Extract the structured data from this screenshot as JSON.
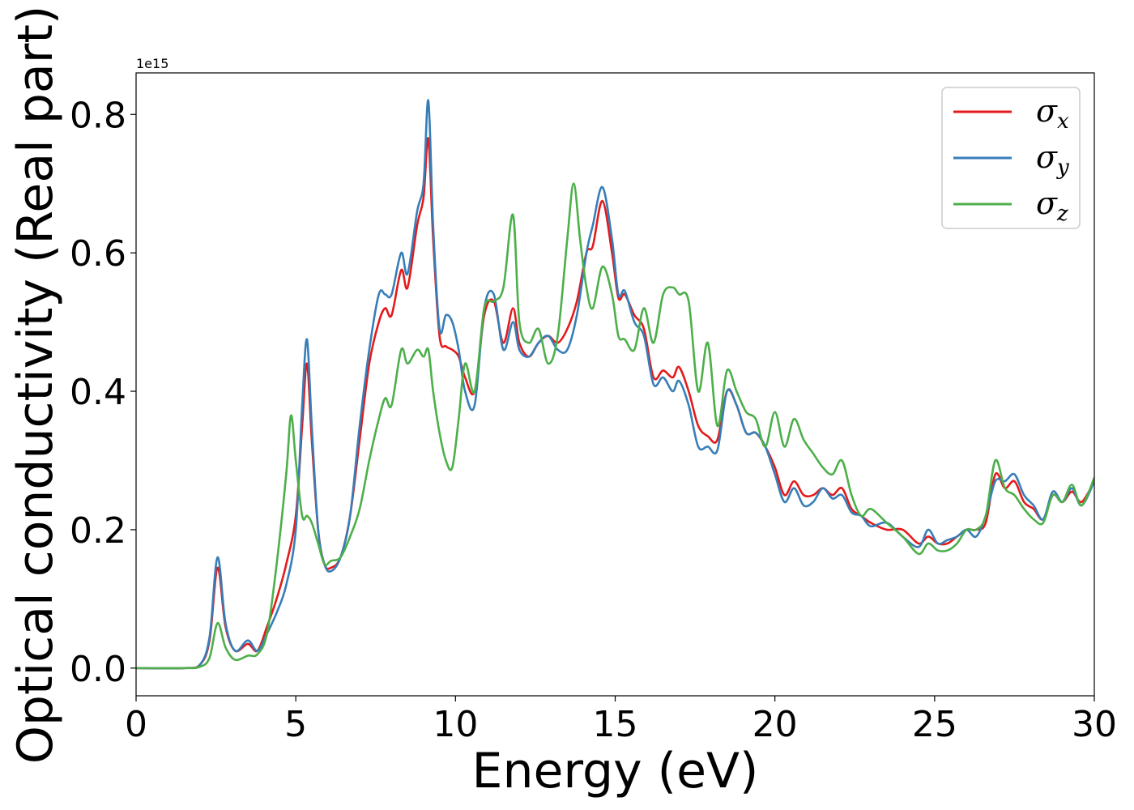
{
  "chart_data": {
    "type": "line",
    "xlabel": "Energy (eV)",
    "ylabel": "Optical conductivity (Real part)",
    "y_offset_label": "1e15",
    "xlim": [
      0,
      30
    ],
    "ylim": [
      -0.04,
      0.86
    ],
    "xticks": [
      0,
      5,
      10,
      15,
      20,
      25,
      30
    ],
    "xtick_labels": [
      "0",
      "5",
      "10",
      "15",
      "20",
      "25",
      "30"
    ],
    "yticks": [
      0.0,
      0.2,
      0.4,
      0.6,
      0.8
    ],
    "ytick_labels": [
      "0.0",
      "0.2",
      "0.4",
      "0.6",
      "0.8"
    ],
    "grid": false,
    "legend_position": "top-right",
    "series": [
      {
        "name": "σx",
        "symbol": "σ",
        "subscript": "x",
        "color": "#e41a1c",
        "x": [
          0,
          1.5,
          2.0,
          2.3,
          2.55,
          2.8,
          3.1,
          3.5,
          3.8,
          4.1,
          4.4,
          4.7,
          5.0,
          5.2,
          5.35,
          5.5,
          5.7,
          5.9,
          6.1,
          6.4,
          6.7,
          7.0,
          7.3,
          7.6,
          7.8,
          8.0,
          8.3,
          8.5,
          8.8,
          9.0,
          9.15,
          9.3,
          9.5,
          9.7,
          9.9,
          10.1,
          10.3,
          10.6,
          10.9,
          11.2,
          11.5,
          11.8,
          12.0,
          12.3,
          12.6,
          12.9,
          13.2,
          13.5,
          13.8,
          14.1,
          14.3,
          14.6,
          14.9,
          15.1,
          15.3,
          15.6,
          15.9,
          16.2,
          16.5,
          16.8,
          17.0,
          17.3,
          17.6,
          17.9,
          18.2,
          18.5,
          18.8,
          19.1,
          19.4,
          19.7,
          20.0,
          20.3,
          20.6,
          20.9,
          21.2,
          21.5,
          21.8,
          22.1,
          22.4,
          22.7,
          23.0,
          23.5,
          24.0,
          24.5,
          24.8,
          25.1,
          25.4,
          25.7,
          26.0,
          26.3,
          26.6,
          26.9,
          27.2,
          27.5,
          27.8,
          28.1,
          28.4,
          28.7,
          29.0,
          29.3,
          29.6,
          30.0
        ],
        "y": [
          0.0,
          0.0,
          0.005,
          0.04,
          0.145,
          0.06,
          0.025,
          0.035,
          0.025,
          0.06,
          0.1,
          0.15,
          0.22,
          0.35,
          0.44,
          0.33,
          0.2,
          0.15,
          0.145,
          0.16,
          0.22,
          0.33,
          0.44,
          0.5,
          0.52,
          0.51,
          0.575,
          0.55,
          0.64,
          0.68,
          0.765,
          0.62,
          0.48,
          0.465,
          0.46,
          0.45,
          0.42,
          0.4,
          0.51,
          0.53,
          0.47,
          0.52,
          0.47,
          0.45,
          0.47,
          0.48,
          0.47,
          0.49,
          0.53,
          0.6,
          0.61,
          0.675,
          0.6,
          0.535,
          0.54,
          0.51,
          0.49,
          0.42,
          0.43,
          0.42,
          0.435,
          0.4,
          0.35,
          0.335,
          0.33,
          0.4,
          0.38,
          0.34,
          0.34,
          0.32,
          0.29,
          0.25,
          0.27,
          0.25,
          0.25,
          0.26,
          0.25,
          0.26,
          0.23,
          0.22,
          0.21,
          0.2,
          0.2,
          0.18,
          0.19,
          0.18,
          0.18,
          0.19,
          0.2,
          0.2,
          0.21,
          0.28,
          0.26,
          0.27,
          0.24,
          0.23,
          0.215,
          0.25,
          0.24,
          0.255,
          0.24,
          0.27
        ]
      },
      {
        "name": "σy",
        "symbol": "σ",
        "subscript": "y",
        "color": "#377eb8",
        "x": [
          0,
          1.5,
          2.0,
          2.3,
          2.55,
          2.8,
          3.1,
          3.5,
          3.8,
          4.1,
          4.4,
          4.7,
          5.0,
          5.2,
          5.35,
          5.5,
          5.7,
          5.9,
          6.1,
          6.4,
          6.7,
          7.0,
          7.3,
          7.6,
          7.8,
          8.0,
          8.3,
          8.5,
          8.8,
          9.0,
          9.15,
          9.3,
          9.5,
          9.7,
          9.9,
          10.1,
          10.3,
          10.6,
          10.9,
          11.2,
          11.5,
          11.8,
          12.0,
          12.3,
          12.6,
          12.9,
          13.2,
          13.5,
          13.8,
          14.1,
          14.3,
          14.6,
          14.9,
          15.1,
          15.3,
          15.6,
          15.9,
          16.2,
          16.5,
          16.8,
          17.0,
          17.3,
          17.6,
          17.9,
          18.2,
          18.5,
          18.8,
          19.1,
          19.4,
          19.7,
          20.0,
          20.3,
          20.6,
          20.9,
          21.2,
          21.5,
          21.8,
          22.1,
          22.4,
          22.7,
          23.0,
          23.5,
          24.0,
          24.5,
          24.8,
          25.1,
          25.4,
          25.7,
          26.0,
          26.3,
          26.6,
          26.9,
          27.2,
          27.5,
          27.8,
          28.1,
          28.4,
          28.7,
          29.0,
          29.3,
          29.6,
          30.0
        ],
        "y": [
          0.0,
          0.0,
          0.005,
          0.045,
          0.16,
          0.065,
          0.025,
          0.04,
          0.025,
          0.05,
          0.08,
          0.12,
          0.2,
          0.38,
          0.475,
          0.35,
          0.2,
          0.15,
          0.14,
          0.16,
          0.22,
          0.35,
          0.46,
          0.54,
          0.54,
          0.54,
          0.6,
          0.57,
          0.66,
          0.7,
          0.82,
          0.64,
          0.49,
          0.51,
          0.5,
          0.46,
          0.4,
          0.38,
          0.52,
          0.54,
          0.46,
          0.5,
          0.46,
          0.45,
          0.47,
          0.48,
          0.46,
          0.46,
          0.51,
          0.6,
          0.64,
          0.695,
          0.62,
          0.54,
          0.545,
          0.5,
          0.48,
          0.41,
          0.42,
          0.4,
          0.415,
          0.38,
          0.32,
          0.32,
          0.315,
          0.4,
          0.38,
          0.34,
          0.34,
          0.32,
          0.28,
          0.24,
          0.26,
          0.235,
          0.24,
          0.26,
          0.245,
          0.25,
          0.225,
          0.22,
          0.205,
          0.21,
          0.19,
          0.175,
          0.2,
          0.18,
          0.185,
          0.19,
          0.2,
          0.19,
          0.22,
          0.27,
          0.27,
          0.28,
          0.25,
          0.235,
          0.215,
          0.255,
          0.24,
          0.26,
          0.235,
          0.27
        ]
      },
      {
        "name": "σz",
        "symbol": "σ",
        "subscript": "z",
        "color": "#4daf4a",
        "x": [
          0,
          1.5,
          2.0,
          2.3,
          2.55,
          2.8,
          3.1,
          3.5,
          3.8,
          4.1,
          4.4,
          4.7,
          4.85,
          5.0,
          5.2,
          5.35,
          5.5,
          5.7,
          5.9,
          6.1,
          6.4,
          6.7,
          7.0,
          7.3,
          7.6,
          7.8,
          8.0,
          8.3,
          8.5,
          8.8,
          9.0,
          9.15,
          9.3,
          9.5,
          9.7,
          9.9,
          10.1,
          10.3,
          10.6,
          10.9,
          11.2,
          11.5,
          11.8,
          12.0,
          12.3,
          12.6,
          12.9,
          13.2,
          13.5,
          13.7,
          13.9,
          14.1,
          14.3,
          14.6,
          14.9,
          15.1,
          15.3,
          15.6,
          15.9,
          16.2,
          16.5,
          16.8,
          17.0,
          17.3,
          17.6,
          17.9,
          18.2,
          18.5,
          18.8,
          19.1,
          19.4,
          19.7,
          20.0,
          20.3,
          20.6,
          20.9,
          21.2,
          21.5,
          21.8,
          22.1,
          22.4,
          22.7,
          23.0,
          23.5,
          24.0,
          24.5,
          24.8,
          25.1,
          25.4,
          25.7,
          26.0,
          26.3,
          26.6,
          26.9,
          27.2,
          27.5,
          27.8,
          28.1,
          28.4,
          28.7,
          29.0,
          29.3,
          29.6,
          30.0
        ],
        "y": [
          0.0,
          0.0,
          0.002,
          0.015,
          0.065,
          0.03,
          0.012,
          0.018,
          0.02,
          0.05,
          0.15,
          0.28,
          0.365,
          0.3,
          0.22,
          0.22,
          0.21,
          0.18,
          0.15,
          0.155,
          0.16,
          0.19,
          0.23,
          0.3,
          0.36,
          0.39,
          0.38,
          0.46,
          0.44,
          0.46,
          0.45,
          0.46,
          0.4,
          0.34,
          0.3,
          0.29,
          0.36,
          0.44,
          0.4,
          0.52,
          0.53,
          0.55,
          0.655,
          0.5,
          0.47,
          0.49,
          0.44,
          0.48,
          0.62,
          0.7,
          0.62,
          0.55,
          0.52,
          0.58,
          0.54,
          0.48,
          0.475,
          0.46,
          0.52,
          0.47,
          0.54,
          0.55,
          0.54,
          0.53,
          0.4,
          0.47,
          0.35,
          0.43,
          0.4,
          0.37,
          0.36,
          0.32,
          0.37,
          0.32,
          0.36,
          0.33,
          0.31,
          0.29,
          0.28,
          0.3,
          0.25,
          0.22,
          0.23,
          0.21,
          0.19,
          0.165,
          0.18,
          0.17,
          0.17,
          0.18,
          0.2,
          0.2,
          0.22,
          0.3,
          0.26,
          0.25,
          0.23,
          0.215,
          0.21,
          0.25,
          0.24,
          0.265,
          0.235,
          0.275
        ]
      }
    ]
  }
}
